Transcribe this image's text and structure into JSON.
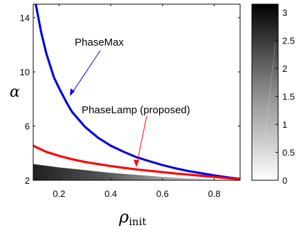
{
  "chart_data": {
    "type": "heatmap",
    "xlabel": "ρ",
    "xlabel_sub": "init",
    "ylabel": "α",
    "xlim": [
      0.1,
      0.9
    ],
    "ylim": [
      2,
      15
    ],
    "xticks": [
      0.2,
      0.4,
      0.6,
      0.8
    ],
    "xtick_labels": [
      "0.2",
      "0.4",
      "0.6",
      "0.8"
    ],
    "yticks": [
      2,
      6,
      10,
      14
    ],
    "ytick_labels": [
      "2",
      "6",
      "10",
      "14"
    ],
    "colorbar": {
      "range": [
        0,
        3.15
      ],
      "ticks": [
        0,
        0.5,
        1,
        1.5,
        2,
        2.5,
        3
      ],
      "tick_labels": [
        "0",
        "0.5",
        "1",
        "1.5",
        "2",
        "2.5",
        "3"
      ],
      "colormap": "gray-inverted"
    },
    "heatmap_region": {
      "alpha_max_dark": [
        [
          0.1,
          3.2
        ],
        [
          0.2,
          2.95
        ],
        [
          0.3,
          2.75
        ],
        [
          0.4,
          2.55
        ],
        [
          0.5,
          2.4
        ],
        [
          0.6,
          2.25
        ],
        [
          0.7,
          2.15
        ],
        [
          0.8,
          2.05
        ],
        [
          0.9,
          2.0
        ]
      ]
    },
    "series": [
      {
        "name": "PhaseMax",
        "color": "#0000e6",
        "x": [
          0.11,
          0.13,
          0.15,
          0.18,
          0.2,
          0.23,
          0.25,
          0.3,
          0.35,
          0.4,
          0.45,
          0.5,
          0.55,
          0.6,
          0.65,
          0.7,
          0.75,
          0.8,
          0.85,
          0.9
        ],
        "y": [
          15,
          13.0,
          11.4,
          9.6,
          8.8,
          7.7,
          7.05,
          5.95,
          5.15,
          4.55,
          4.1,
          3.7,
          3.4,
          3.12,
          2.88,
          2.68,
          2.52,
          2.36,
          2.22,
          2.1
        ]
      },
      {
        "name": "PhaseLamp (proposed)",
        "color": "#ff0000",
        "x": [
          0.1,
          0.15,
          0.2,
          0.25,
          0.3,
          0.35,
          0.4,
          0.45,
          0.5,
          0.55,
          0.6,
          0.65,
          0.7,
          0.75,
          0.8,
          0.85,
          0.9
        ],
        "y": [
          4.55,
          4.1,
          3.8,
          3.55,
          3.35,
          3.2,
          3.05,
          2.92,
          2.8,
          2.7,
          2.6,
          2.5,
          2.42,
          2.33,
          2.25,
          2.16,
          2.08
        ]
      }
    ],
    "annotations": [
      "PhaseMax",
      "PhaseLamp (proposed)"
    ]
  }
}
